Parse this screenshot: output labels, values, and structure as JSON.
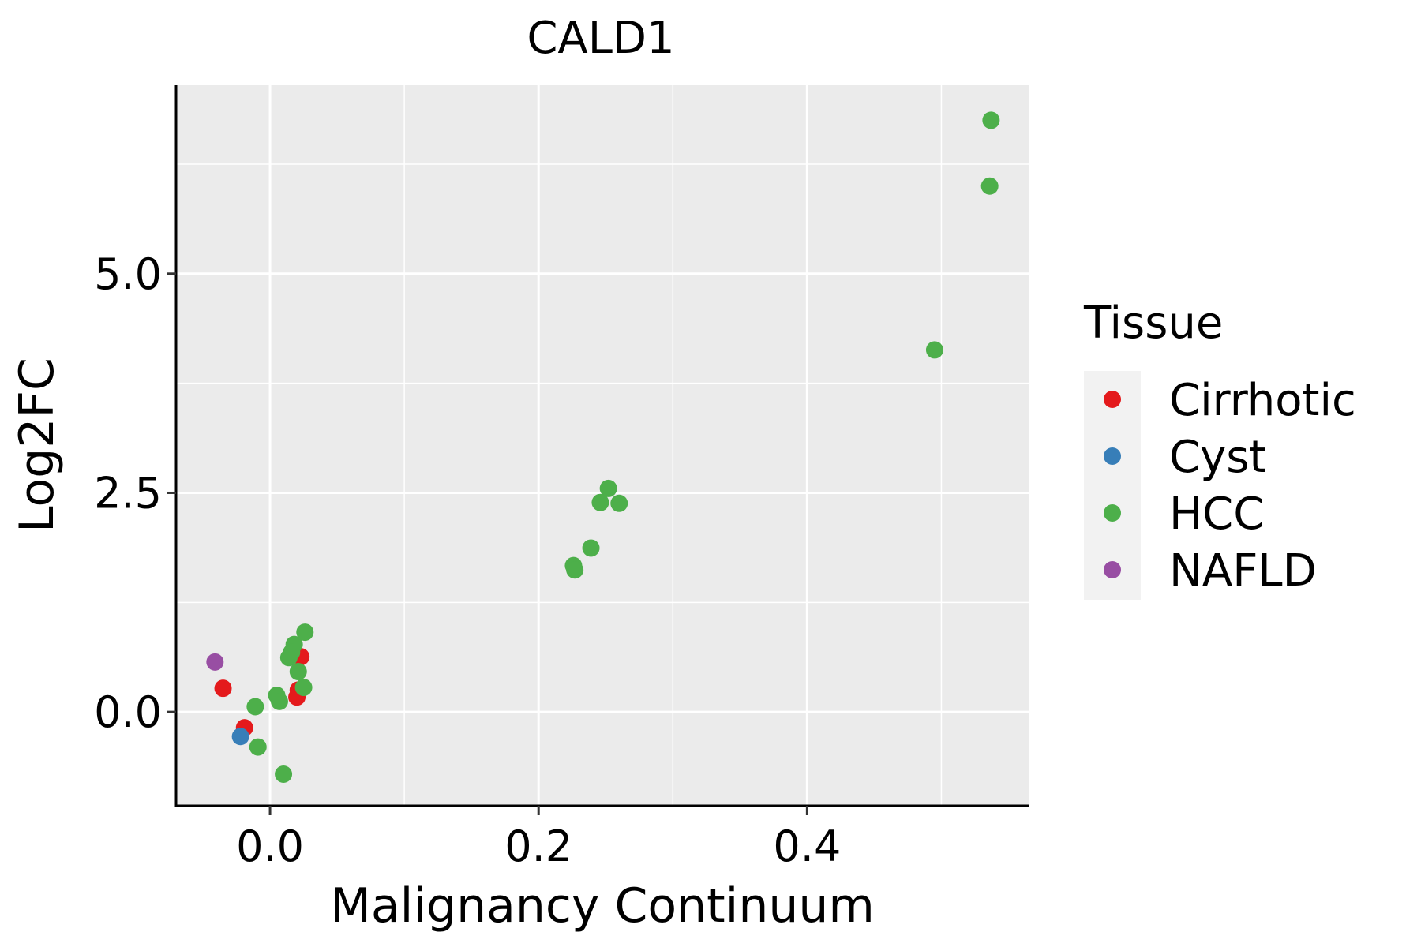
{
  "chart_data": {
    "type": "scatter",
    "title": "CALD1",
    "xlabel": "Malignancy Continuum",
    "ylabel": "Log2FC",
    "xlim": [
      -0.07,
      0.565
    ],
    "ylim": [
      -1.07,
      7.15
    ],
    "x_ticks": [
      {
        "value": 0.0,
        "label": "0.0"
      },
      {
        "value": 0.2,
        "label": "0.2"
      },
      {
        "value": 0.4,
        "label": "0.4"
      }
    ],
    "y_ticks": [
      {
        "value": 0.0,
        "label": "0.0"
      },
      {
        "value": 2.5,
        "label": "2.5"
      },
      {
        "value": 5.0,
        "label": "5.0"
      }
    ],
    "x_minor": [
      0.1,
      0.3,
      0.5
    ],
    "y_minor": [
      1.25,
      3.75,
      6.25
    ],
    "grid": true,
    "legend": {
      "title": "Tissue",
      "position": "right",
      "entries": [
        {
          "name": "Cirrhotic",
          "color": "#E41A1C"
        },
        {
          "name": "Cyst",
          "color": "#377EB8"
        },
        {
          "name": "HCC",
          "color": "#4DAF4A"
        },
        {
          "name": "NAFLD",
          "color": "#984EA3"
        }
      ]
    },
    "series": [
      {
        "name": "Cirrhotic",
        "color": "#E41A1C",
        "points": [
          {
            "x": -0.035,
            "y": 0.27
          },
          {
            "x": -0.019,
            "y": -0.18
          },
          {
            "x": 0.021,
            "y": 0.25
          },
          {
            "x": 0.02,
            "y": 0.17
          },
          {
            "x": 0.023,
            "y": 0.63
          }
        ]
      },
      {
        "name": "Cyst",
        "color": "#377EB8",
        "points": [
          {
            "x": -0.022,
            "y": -0.28
          }
        ]
      },
      {
        "name": "HCC",
        "color": "#4DAF4A",
        "points": [
          {
            "x": 0.537,
            "y": 6.75
          },
          {
            "x": 0.536,
            "y": 6.0
          },
          {
            "x": 0.495,
            "y": 4.13
          },
          {
            "x": 0.252,
            "y": 2.55
          },
          {
            "x": 0.246,
            "y": 2.39
          },
          {
            "x": 0.26,
            "y": 2.38
          },
          {
            "x": 0.239,
            "y": 1.87
          },
          {
            "x": 0.226,
            "y": 1.67
          },
          {
            "x": 0.227,
            "y": 1.62
          },
          {
            "x": 0.026,
            "y": 0.91
          },
          {
            "x": 0.018,
            "y": 0.77
          },
          {
            "x": 0.016,
            "y": 0.68
          },
          {
            "x": 0.014,
            "y": 0.62
          },
          {
            "x": 0.021,
            "y": 0.46
          },
          {
            "x": 0.025,
            "y": 0.28
          },
          {
            "x": 0.005,
            "y": 0.19
          },
          {
            "x": 0.007,
            "y": 0.12
          },
          {
            "x": -0.011,
            "y": 0.06
          },
          {
            "x": -0.009,
            "y": -0.4
          },
          {
            "x": 0.01,
            "y": -0.71
          }
        ]
      },
      {
        "name": "NAFLD",
        "color": "#984EA3",
        "points": [
          {
            "x": -0.041,
            "y": 0.57
          }
        ]
      }
    ]
  }
}
